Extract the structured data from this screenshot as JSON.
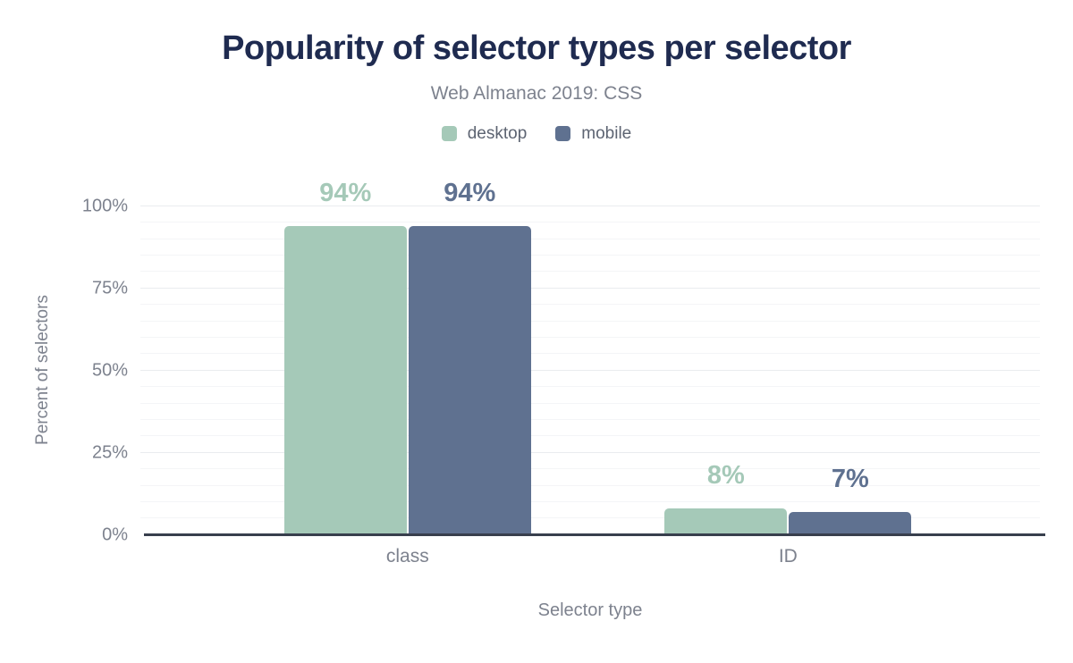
{
  "chart_data": {
    "type": "bar",
    "title": "Popularity of selector types per selector",
    "subtitle": "Web Almanac 2019: CSS",
    "categories": [
      "class",
      "ID"
    ],
    "series": [
      {
        "name": "desktop",
        "color": "#a5c9b8",
        "values": [
          94,
          8
        ],
        "value_labels": [
          "94%",
          "8%"
        ]
      },
      {
        "name": "mobile",
        "color": "#5f7190",
        "values": [
          94,
          7
        ],
        "value_labels": [
          "94%",
          "7%"
        ]
      }
    ],
    "xlabel": "Selector type",
    "ylabel": "Percent of selectors",
    "ylim": [
      0,
      100
    ],
    "ytick_values": [
      0,
      25,
      50,
      75,
      100
    ],
    "yticks": [
      "0%",
      "25%",
      "50%",
      "75%",
      "100%"
    ],
    "minor_grid_step": 5,
    "major_grid_step": 25,
    "grid": true,
    "legend_position": "top",
    "group_centers_pct": [
      29.7,
      72
    ]
  },
  "colors": {
    "background": "#ffffff",
    "title_text": "#1f2b50",
    "muted_text": "#7d828e",
    "legend_text": "#5d6472",
    "axis_line": "#383f4d",
    "grid_minor": "#f4f5f7",
    "grid_major": "#eaecef"
  }
}
